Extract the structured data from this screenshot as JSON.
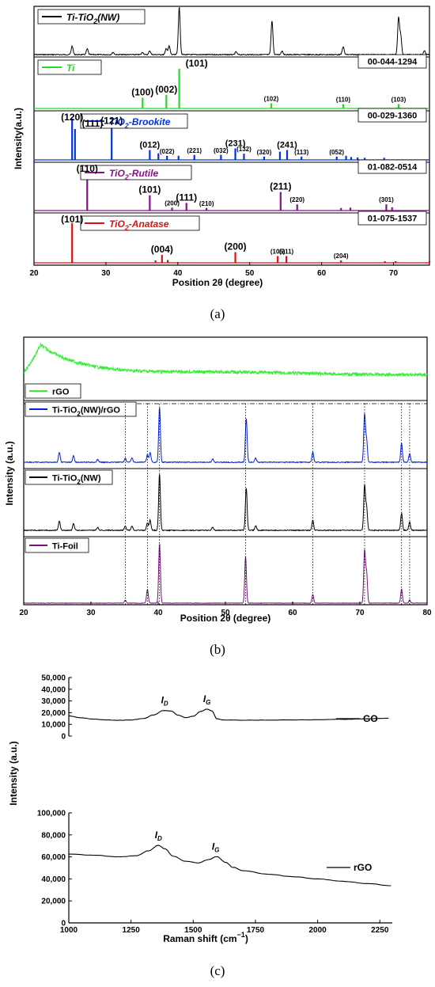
{
  "chart_data": [
    {
      "type": "line",
      "panel": "a",
      "caption": "(a)",
      "xlabel": "Position 2θ (degree)",
      "ylabel": "Intensity(a.u.)",
      "xlim": [
        20,
        75
      ],
      "xticks": [
        "20",
        "30",
        "40",
        "50",
        "60",
        "70"
      ],
      "grid": false,
      "series": [
        {
          "name": "Ti-TiO2(NW)",
          "color": "#000000",
          "peaks": [
            [
              25.3,
              0.18
            ],
            [
              27.4,
              0.12
            ],
            [
              31.0,
              0.05
            ],
            [
              35.1,
              0.05
            ],
            [
              36.1,
              0.08
            ],
            [
              38.4,
              0.13
            ],
            [
              38.8,
              0.18
            ],
            [
              40.2,
              1.0
            ],
            [
              48.1,
              0.06
            ],
            [
              53.1,
              0.72
            ],
            [
              54.5,
              0.08
            ],
            [
              63.0,
              0.17
            ],
            [
              70.7,
              0.77
            ],
            [
              71.0,
              0.4
            ],
            [
              74.3,
              0.08
            ]
          ]
        },
        {
          "name": "Ti",
          "pdf": "00-044-1294",
          "color": "#22dd22",
          "peaks": [
            [
              35.1,
              0.27
            ],
            [
              38.4,
              0.34
            ],
            [
              40.2,
              1.0
            ],
            [
              53.0,
              0.13
            ],
            [
              63.0,
              0.11
            ],
            [
              70.7,
              0.11
            ]
          ],
          "hkl": [
            {
              "x": 35.1,
              "label": "(100)",
              "size": "big"
            },
            {
              "x": 38.4,
              "label": "(002)",
              "size": "big"
            },
            {
              "x": 40.2,
              "label": "(101)",
              "size": "big"
            },
            {
              "x": 53.0,
              "label": "(102)",
              "size": "small"
            },
            {
              "x": 63.0,
              "label": "(110)",
              "size": "small"
            },
            {
              "x": 70.7,
              "label": "(103)",
              "size": "small"
            }
          ]
        },
        {
          "name": "TiO2-Brookite",
          "pdf": "00-029-1360",
          "color": "#0033dd",
          "peaks": [
            [
              25.3,
              1.0
            ],
            [
              25.7,
              0.75
            ],
            [
              30.8,
              0.82
            ],
            [
              36.1,
              0.24
            ],
            [
              37.3,
              0.16
            ],
            [
              38.5,
              0.1
            ],
            [
              40.1,
              0.1
            ],
            [
              42.3,
              0.12
            ],
            [
              46.0,
              0.12
            ],
            [
              48.0,
              0.28
            ],
            [
              49.2,
              0.15
            ],
            [
              52.0,
              0.08
            ],
            [
              54.2,
              0.2
            ],
            [
              55.2,
              0.24
            ],
            [
              57.2,
              0.08
            ],
            [
              62.1,
              0.08
            ],
            [
              63.4,
              0.1
            ],
            [
              64.1,
              0.07
            ],
            [
              65.0,
              0.06
            ],
            [
              66.0,
              0.05
            ],
            [
              68.7,
              0.05
            ]
          ],
          "hkl": [
            {
              "x": 25.3,
              "label": "(120)",
              "size": "big"
            },
            {
              "x": 25.7,
              "label": "(111)",
              "size": "big"
            },
            {
              "x": 30.8,
              "label": "(121)",
              "size": "big"
            },
            {
              "x": 36.1,
              "label": "(012)",
              "size": "mid"
            },
            {
              "x": 38.5,
              "label": "(022)",
              "size": "small"
            },
            {
              "x": 42.3,
              "label": "(221)",
              "size": "small"
            },
            {
              "x": 46.0,
              "label": "(032)",
              "size": "small"
            },
            {
              "x": 48.0,
              "label": "(231)",
              "size": "mid"
            },
            {
              "x": 49.2,
              "label": "(132)",
              "size": "small"
            },
            {
              "x": 52.0,
              "label": "(320)",
              "size": "small"
            },
            {
              "x": 55.2,
              "label": "(241)",
              "size": "mid"
            },
            {
              "x": 57.2,
              "label": "(113)",
              "size": "small"
            },
            {
              "x": 62.1,
              "label": "(052)",
              "size": "small"
            }
          ]
        },
        {
          "name": "TiO2-Rutile",
          "pdf": "01-082-0514",
          "color": "#881188",
          "peaks": [
            [
              27.4,
              1.0
            ],
            [
              36.1,
              0.42
            ],
            [
              39.2,
              0.08
            ],
            [
              41.2,
              0.21
            ],
            [
              44.0,
              0.07
            ],
            [
              54.3,
              0.51
            ],
            [
              56.6,
              0.17
            ],
            [
              62.7,
              0.07
            ],
            [
              64.0,
              0.08
            ],
            [
              69.0,
              0.17
            ],
            [
              69.8,
              0.09
            ]
          ],
          "hkl": [
            {
              "x": 27.4,
              "label": "(110)",
              "size": "big"
            },
            {
              "x": 36.1,
              "label": "(101)",
              "size": "big"
            },
            {
              "x": 39.2,
              "label": "(200)",
              "size": "small"
            },
            {
              "x": 41.2,
              "label": "(111)",
              "size": "big"
            },
            {
              "x": 44.0,
              "label": "(210)",
              "size": "small"
            },
            {
              "x": 54.3,
              "label": "(211)",
              "size": "big"
            },
            {
              "x": 56.6,
              "label": "(220)",
              "size": "small"
            },
            {
              "x": 69.0,
              "label": "(301)",
              "size": "small"
            }
          ]
        },
        {
          "name": "TiO2-Anatase",
          "pdf": "01-075-1537",
          "color": "#dd1111",
          "peaks": [
            [
              25.3,
              1.0
            ],
            [
              36.9,
              0.06
            ],
            [
              37.8,
              0.2
            ],
            [
              38.6,
              0.07
            ],
            [
              48.0,
              0.27
            ],
            [
              53.9,
              0.17
            ],
            [
              55.1,
              0.17
            ],
            [
              62.7,
              0.06
            ],
            [
              68.8,
              0.04
            ],
            [
              70.3,
              0.04
            ],
            [
              75.0,
              0.05
            ]
          ],
          "hkl": [
            {
              "x": 25.3,
              "label": "(101)",
              "size": "big"
            },
            {
              "x": 37.8,
              "label": "(004)",
              "size": "big"
            },
            {
              "x": 48.0,
              "label": "(200)",
              "size": "big"
            },
            {
              "x": 53.9,
              "label": "(105)",
              "size": "small"
            },
            {
              "x": 55.1,
              "label": "(211)",
              "size": "small"
            },
            {
              "x": 62.7,
              "label": "(204)",
              "size": "small"
            }
          ]
        }
      ]
    },
    {
      "type": "line",
      "panel": "b",
      "caption": "(b)",
      "xlabel": "Position 2θ (degree)",
      "ylabel": "Intensity (a.u.)",
      "xlim": [
        20,
        80
      ],
      "xticks": [
        "20",
        "30",
        "40",
        "50",
        "60",
        "70",
        "80"
      ],
      "grid": false,
      "guide_lines_x": [
        35.1,
        38.4,
        40.2,
        53.0,
        63.0,
        70.7,
        76.2,
        77.4
      ],
      "series": [
        {
          "name": "rGO",
          "color": "#33ee33",
          "shape": "broad",
          "humps": [
            [
              22.5,
              1.0
            ],
            [
              50,
              0.2
            ]
          ]
        },
        {
          "name": "Ti-TiO2(NW)/rGO",
          "color": "#0022dd",
          "peaks": [
            [
              25.3,
              0.18
            ],
            [
              27.4,
              0.12
            ],
            [
              31.0,
              0.05
            ],
            [
              35.1,
              0.08
            ],
            [
              36.1,
              0.08
            ],
            [
              38.4,
              0.13
            ],
            [
              38.8,
              0.18
            ],
            [
              40.2,
              1.0
            ],
            [
              48.1,
              0.06
            ],
            [
              53.1,
              0.8
            ],
            [
              54.5,
              0.08
            ],
            [
              63.0,
              0.18
            ],
            [
              70.7,
              0.85
            ],
            [
              71.0,
              0.4
            ],
            [
              76.2,
              0.34
            ],
            [
              77.4,
              0.16
            ]
          ]
        },
        {
          "name": "Ti-TiO2(NW)",
          "color": "#000000",
          "peaks": [
            [
              25.3,
              0.17
            ],
            [
              27.4,
              0.12
            ],
            [
              31.0,
              0.05
            ],
            [
              35.1,
              0.08
            ],
            [
              36.1,
              0.08
            ],
            [
              38.4,
              0.13
            ],
            [
              38.8,
              0.18
            ],
            [
              40.2,
              1.0
            ],
            [
              48.1,
              0.06
            ],
            [
              53.1,
              0.75
            ],
            [
              54.5,
              0.08
            ],
            [
              63.0,
              0.18
            ],
            [
              70.7,
              0.78
            ],
            [
              71.0,
              0.4
            ],
            [
              76.2,
              0.3
            ],
            [
              77.4,
              0.15
            ]
          ]
        },
        {
          "name": "Ti-Foil",
          "color": "#771177",
          "peaks": [
            [
              35.1,
              0.05
            ],
            [
              38.4,
              0.23
            ],
            [
              40.2,
              1.0
            ],
            [
              53.0,
              0.78
            ],
            [
              63.0,
              0.14
            ],
            [
              70.7,
              0.86
            ],
            [
              71.0,
              0.5
            ],
            [
              76.2,
              0.23
            ],
            [
              77.4,
              0.05
            ]
          ]
        }
      ]
    },
    {
      "type": "line",
      "panel": "c",
      "caption": "(c)",
      "xlabel": "Raman shift (cm",
      "xlabel_sup": "−1",
      "xlabel_end": ")",
      "ylabel": "Intensity (a.u.)",
      "xlim": [
        1000,
        2300
      ],
      "xticks": [
        "1000",
        "1250",
        "1500",
        "1750",
        "2000",
        "2250"
      ],
      "grid": false,
      "subplots": [
        {
          "name": "GO",
          "ylim": [
            0,
            50000
          ],
          "yticks": [
            "0",
            "10,000",
            "20,000",
            "30,000",
            "40,000",
            "50,000"
          ],
          "points": [
            [
              1000,
              17200
            ],
            [
              1050,
              15600
            ],
            [
              1100,
              14500
            ],
            [
              1150,
              13800
            ],
            [
              1200,
              13500
            ],
            [
              1250,
              13800
            ],
            [
              1300,
              15000
            ],
            [
              1340,
              18000
            ],
            [
              1380,
              21800
            ],
            [
              1410,
              21500
            ],
            [
              1440,
              17800
            ],
            [
              1470,
              15800
            ],
            [
              1500,
              17000
            ],
            [
              1530,
              21000
            ],
            [
              1555,
              23000
            ],
            [
              1575,
              21500
            ],
            [
              1595,
              14800
            ],
            [
              1620,
              13800
            ],
            [
              1700,
              13600
            ],
            [
              1800,
              13700
            ],
            [
              1900,
              13800
            ],
            [
              2000,
              14000
            ],
            [
              2100,
              14300
            ],
            [
              2200,
              14700
            ],
            [
              2285,
              15300
            ]
          ],
          "labels": [
            {
              "x": 1385,
              "text": "I",
              "sub": "D"
            },
            {
              "x": 1555,
              "text": "I",
              "sub": "G"
            }
          ]
        },
        {
          "name": "rGO",
          "ylim": [
            0,
            100000
          ],
          "yticks": [
            "0",
            "20,000",
            "40,000",
            "60,000",
            "80,000",
            "100,000"
          ],
          "points": [
            [
              1000,
              62500
            ],
            [
              1100,
              61500
            ],
            [
              1200,
              60000
            ],
            [
              1270,
              61000
            ],
            [
              1320,
              65500
            ],
            [
              1360,
              70500
            ],
            [
              1385,
              67500
            ],
            [
              1420,
              60500
            ],
            [
              1470,
              56000
            ],
            [
              1520,
              54500
            ],
            [
              1560,
              57500
            ],
            [
              1595,
              60200
            ],
            [
              1630,
              55000
            ],
            [
              1660,
              50500
            ],
            [
              1700,
              47500
            ],
            [
              1800,
              44300
            ],
            [
              1900,
              42000
            ],
            [
              2000,
              40000
            ],
            [
              2100,
              37800
            ],
            [
              2200,
              35800
            ],
            [
              2295,
              33800
            ]
          ],
          "labels": [
            {
              "x": 1360,
              "text": "I",
              "sub": "D"
            },
            {
              "x": 1590,
              "text": "I",
              "sub": "G"
            }
          ]
        }
      ]
    }
  ]
}
